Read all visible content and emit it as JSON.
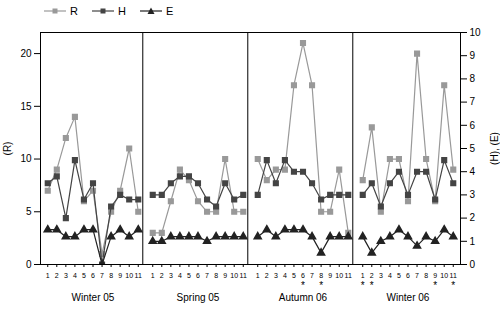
{
  "chart_data": {
    "type": "line",
    "groups": [
      "Winter 05",
      "Spring 05",
      "Autumn 06",
      "Winter 06"
    ],
    "categories": [
      1,
      2,
      3,
      4,
      5,
      6,
      7,
      8,
      9,
      10,
      11
    ],
    "series": [
      {
        "name": "R",
        "color": "#999999",
        "marker": "square",
        "values": [
          [
            7,
            9,
            12,
            14,
            6,
            7,
            1,
            5,
            7,
            11,
            5
          ],
          [
            3,
            3,
            6,
            9,
            8,
            6,
            5,
            5,
            10,
            5,
            5
          ],
          [
            10,
            8,
            9,
            9,
            17,
            21,
            17,
            5,
            5,
            9,
            3
          ],
          [
            8,
            13,
            5,
            10,
            10,
            6,
            20,
            10,
            6,
            17,
            9
          ]
        ]
      },
      {
        "name": "H",
        "color": "#444444",
        "marker": "square",
        "axis": "y2",
        "values": [
          [
            3.5,
            3.8,
            2.0,
            4.5,
            2.8,
            3.5,
            0,
            2.5,
            3.0,
            2.8,
            2.8
          ],
          [
            3.0,
            3.0,
            3.5,
            3.8,
            3.8,
            3.5,
            2.8,
            2.5,
            3.5,
            2.8,
            3.0
          ],
          [
            3.0,
            4.5,
            3.5,
            4.5,
            4.0,
            4.0,
            3.5,
            2.8,
            3.0,
            3.0,
            3.0
          ],
          [
            3.0,
            3.5,
            2.5,
            3.5,
            4.0,
            3.0,
            4.0,
            4.0,
            2.8,
            4.5,
            3.5
          ]
        ]
      },
      {
        "name": "E",
        "color": "#222222",
        "marker": "triangle",
        "axis": "y2",
        "values": [
          [
            1.5,
            1.5,
            1.2,
            1.2,
            1.5,
            1.5,
            0,
            1.2,
            1.5,
            1.2,
            1.5
          ],
          [
            1.0,
            1.0,
            1.2,
            1.2,
            1.2,
            1.2,
            1.0,
            1.2,
            1.2,
            1.2,
            1.2
          ],
          [
            1.2,
            1.5,
            1.2,
            1.5,
            1.5,
            1.5,
            1.2,
            0.5,
            1.2,
            1.2,
            1.2
          ],
          [
            1.2,
            0.5,
            1.0,
            1.2,
            1.5,
            1.2,
            0.8,
            1.2,
            1.0,
            1.5,
            1.2
          ]
        ]
      }
    ],
    "annotations": [
      {
        "group": "Autumn 06",
        "category": 6,
        "text": "*"
      },
      {
        "group": "Autumn 06",
        "category": 8,
        "text": "*"
      },
      {
        "group": "Winter 06",
        "category": 1,
        "text": "*"
      },
      {
        "group": "Winter 06",
        "category": 2,
        "text": "*"
      },
      {
        "group": "Winter 06",
        "category": 9,
        "text": "*"
      },
      {
        "group": "Winter 06",
        "category": 11,
        "text": "*"
      }
    ],
    "ylabel": "(R)",
    "y2label": "(H), (E)",
    "ylim": [
      0,
      22
    ],
    "yticks": [
      0,
      5,
      10,
      15,
      20
    ],
    "y2lim": [
      0,
      10
    ],
    "y2ticks": [
      0,
      1,
      2,
      3,
      4,
      5,
      6,
      7,
      8,
      9,
      10
    ],
    "legend": "upper left",
    "grid": false
  }
}
